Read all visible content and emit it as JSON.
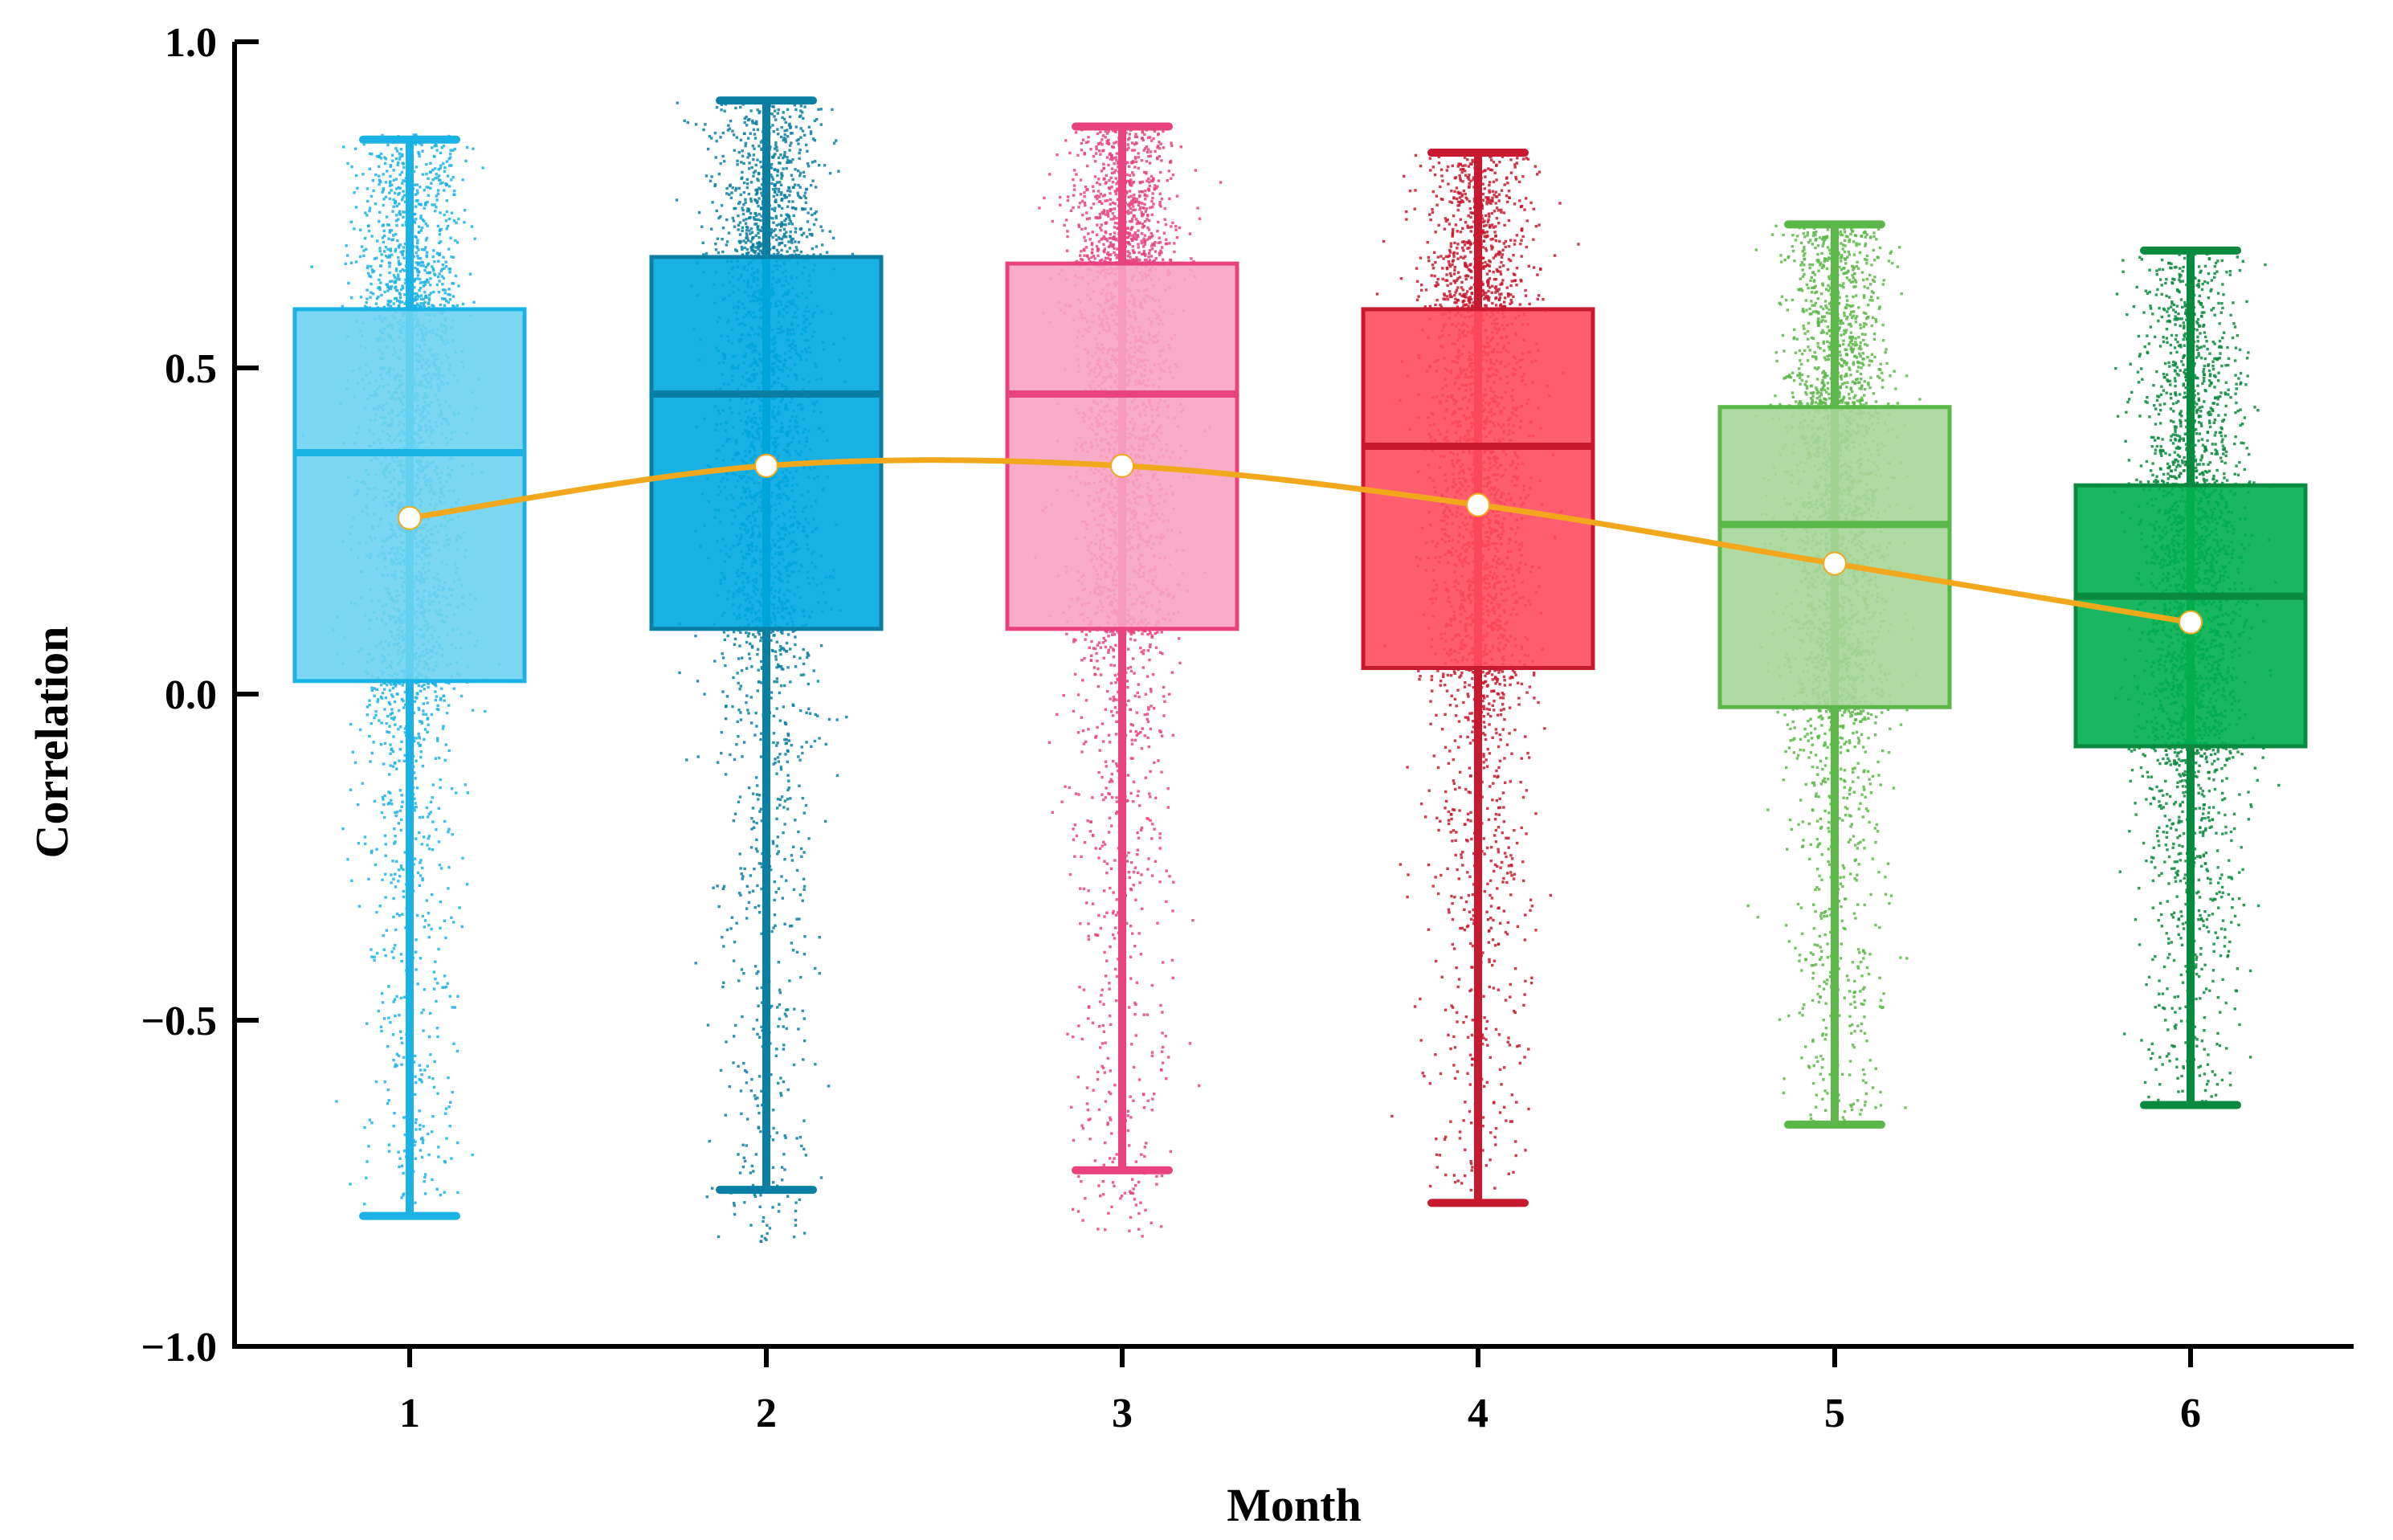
{
  "chart_data": {
    "type": "box",
    "title": "",
    "xlabel": "Month",
    "ylabel": "Correlation",
    "ylim": [
      -1.0,
      1.0
    ],
    "yticks": [
      {
        "value": 1.0,
        "label": "1.0"
      },
      {
        "value": 0.5,
        "label": "0.5"
      },
      {
        "value": 0.0,
        "label": "0.0"
      },
      {
        "value": -0.5,
        "label": "−0.5"
      },
      {
        "value": -1.0,
        "label": "−1.0"
      }
    ],
    "categories": [
      "1",
      "2",
      "3",
      "4",
      "5",
      "6"
    ],
    "boxes": [
      {
        "month": "1",
        "whisker_low": -0.8,
        "q1": 0.02,
        "median": 0.37,
        "q3": 0.59,
        "whisker_high": 0.85,
        "mean": 0.27,
        "color": "#1BB3E6",
        "box_fill": "#6DD3F1",
        "scatter_low": -0.78,
        "scatter_high": 0.86
      },
      {
        "month": "2",
        "whisker_low": -0.76,
        "q1": 0.1,
        "median": 0.46,
        "q3": 0.67,
        "whisker_high": 0.91,
        "mean": 0.35,
        "color": "#0A7FA3",
        "box_fill": "#00A9E0",
        "scatter_low": -0.84,
        "scatter_high": 0.91
      },
      {
        "month": "3",
        "whisker_low": -0.73,
        "q1": 0.1,
        "median": 0.46,
        "q3": 0.66,
        "whisker_high": 0.87,
        "mean": 0.35,
        "color": "#E8437E",
        "box_fill": "#F8A3C2",
        "scatter_low": -0.83,
        "scatter_high": 0.87
      },
      {
        "month": "4",
        "whisker_low": -0.78,
        "q1": 0.04,
        "median": 0.38,
        "q3": 0.59,
        "whisker_high": 0.83,
        "mean": 0.29,
        "color": "#C8192E",
        "box_fill": "#FF4D5E",
        "scatter_low": -0.76,
        "scatter_high": 0.83
      },
      {
        "month": "5",
        "whisker_low": -0.66,
        "q1": -0.02,
        "median": 0.26,
        "q3": 0.44,
        "whisker_high": 0.72,
        "mean": 0.2,
        "color": "#5CB749",
        "box_fill": "#A7D69A",
        "scatter_low": -0.66,
        "scatter_high": 0.72
      },
      {
        "month": "6",
        "whisker_low": -0.63,
        "q1": -0.08,
        "median": 0.15,
        "q3": 0.32,
        "whisker_high": 0.68,
        "mean": 0.11,
        "color": "#0A8A3E",
        "box_fill": "#00B04F",
        "scatter_low": -0.63,
        "scatter_high": 0.68
      }
    ],
    "trend_line": {
      "name": "mean",
      "color": "#F2A81D",
      "values": [
        0.27,
        0.35,
        0.35,
        0.29,
        0.2,
        0.11
      ]
    }
  }
}
